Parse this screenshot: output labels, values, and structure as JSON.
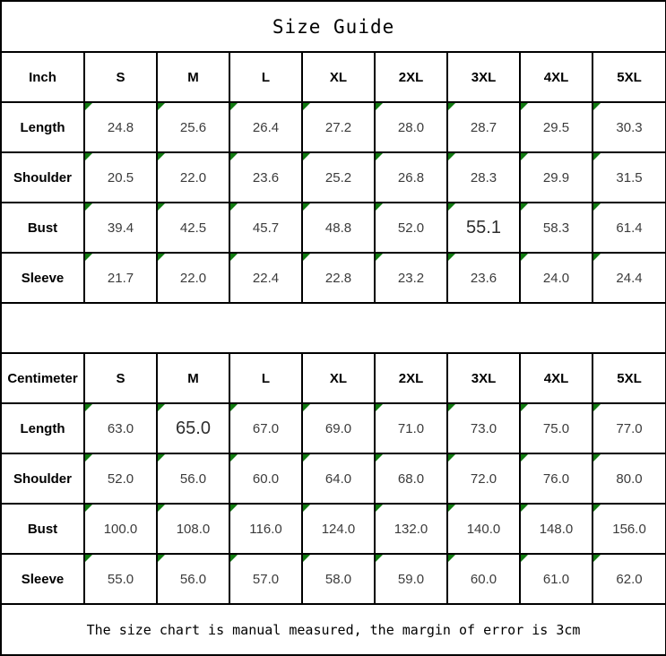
{
  "title": "Size Guide",
  "footer_note": "The size chart is manual measured, the margin of error is 3cm",
  "colors": {
    "marker_green": "#117a11",
    "border_black": "#000000"
  },
  "tables": [
    {
      "unit_label": "Inch",
      "columns": [
        "S",
        "M",
        "L",
        "XL",
        "2XL",
        "3XL",
        "4XL",
        "5XL"
      ],
      "rows": [
        {
          "label": "Length",
          "values": [
            "24.8",
            "25.6",
            "26.4",
            "27.2",
            "28.0",
            "28.7",
            "29.5",
            "30.3"
          ],
          "alt_font_indexes": []
        },
        {
          "label": "Shoulder",
          "values": [
            "20.5",
            "22.0",
            "23.6",
            "25.2",
            "26.8",
            "28.3",
            "29.9",
            "31.5"
          ],
          "alt_font_indexes": []
        },
        {
          "label": "Bust",
          "values": [
            "39.4",
            "42.5",
            "45.7",
            "48.8",
            "52.0",
            "55.1",
            "58.3",
            "61.4"
          ],
          "alt_font_indexes": [
            5
          ]
        },
        {
          "label": "Sleeve",
          "values": [
            "21.7",
            "22.0",
            "22.4",
            "22.8",
            "23.2",
            "23.6",
            "24.0",
            "24.4"
          ],
          "alt_font_indexes": []
        }
      ]
    },
    {
      "unit_label": "Centimeter",
      "columns": [
        "S",
        "M",
        "L",
        "XL",
        "2XL",
        "3XL",
        "4XL",
        "5XL"
      ],
      "rows": [
        {
          "label": "Length",
          "values": [
            "63.0",
            "65.0",
            "67.0",
            "69.0",
            "71.0",
            "73.0",
            "75.0",
            "77.0"
          ],
          "alt_font_indexes": [
            1
          ]
        },
        {
          "label": "Shoulder",
          "values": [
            "52.0",
            "56.0",
            "60.0",
            "64.0",
            "68.0",
            "72.0",
            "76.0",
            "80.0"
          ],
          "alt_font_indexes": []
        },
        {
          "label": "Bust",
          "values": [
            "100.0",
            "108.0",
            "116.0",
            "124.0",
            "132.0",
            "140.0",
            "148.0",
            "156.0"
          ],
          "alt_font_indexes": []
        },
        {
          "label": "Sleeve",
          "values": [
            "55.0",
            "56.0",
            "57.0",
            "58.0",
            "59.0",
            "60.0",
            "61.0",
            "62.0"
          ],
          "alt_font_indexes": []
        }
      ]
    }
  ]
}
